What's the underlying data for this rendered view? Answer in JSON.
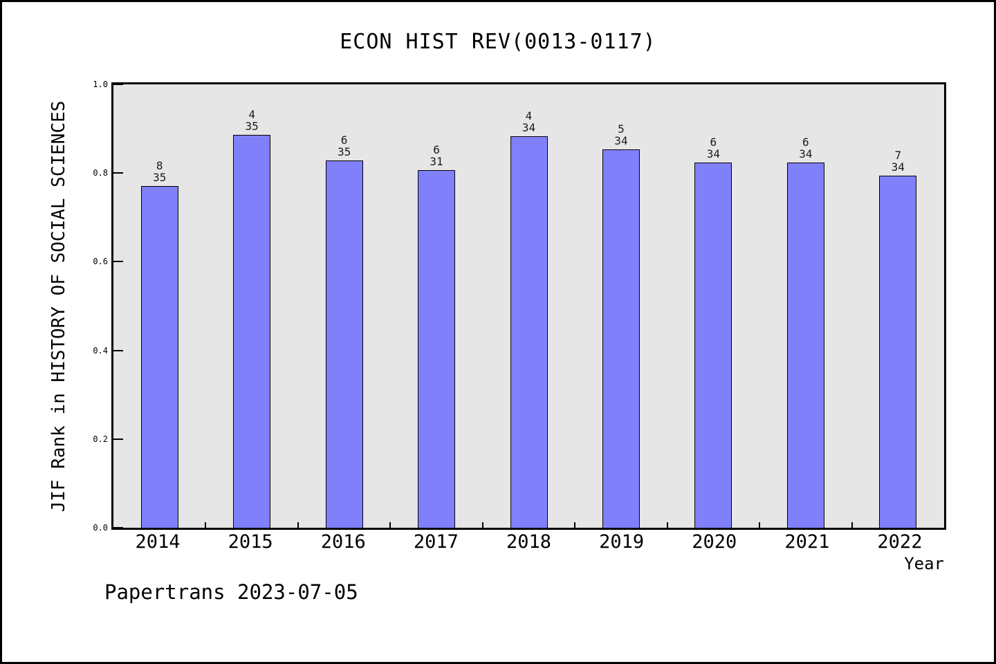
{
  "chart_data": {
    "type": "bar",
    "title": "ECON HIST REV(0013-0117)",
    "xlabel": "Year",
    "ylabel": "JIF Rank in HISTORY OF SOCIAL SCIENCES",
    "categories": [
      "2014",
      "2015",
      "2016",
      "2017",
      "2018",
      "2019",
      "2020",
      "2021",
      "2022"
    ],
    "bars": [
      {
        "year": "2014",
        "rank": "8",
        "total": "35",
        "value": 0.7714
      },
      {
        "year": "2015",
        "rank": "4",
        "total": "35",
        "value": 0.8857
      },
      {
        "year": "2016",
        "rank": "6",
        "total": "35",
        "value": 0.8286
      },
      {
        "year": "2017",
        "rank": "6",
        "total": "31",
        "value": 0.8065
      },
      {
        "year": "2018",
        "rank": "4",
        "total": "34",
        "value": 0.8824
      },
      {
        "year": "2019",
        "rank": "5",
        "total": "34",
        "value": 0.8529
      },
      {
        "year": "2020",
        "rank": "6",
        "total": "34",
        "value": 0.8235
      },
      {
        "year": "2021",
        "rank": "6",
        "total": "34",
        "value": 0.8235
      },
      {
        "year": "2022",
        "rank": "7",
        "total": "34",
        "value": 0.7941
      }
    ],
    "ylim": [
      0.0,
      1.0
    ],
    "yticks": [
      "0.0",
      "0.2",
      "0.4",
      "0.6",
      "0.8",
      "1.0"
    ],
    "grid": false,
    "legend": null,
    "bar_color": "#8080fa",
    "bar_edge_color": "#000000",
    "plot_background": "#e6e6e6",
    "figure_background": "#ffffff"
  },
  "footer": {
    "note": "Papertrans 2023-07-05"
  }
}
